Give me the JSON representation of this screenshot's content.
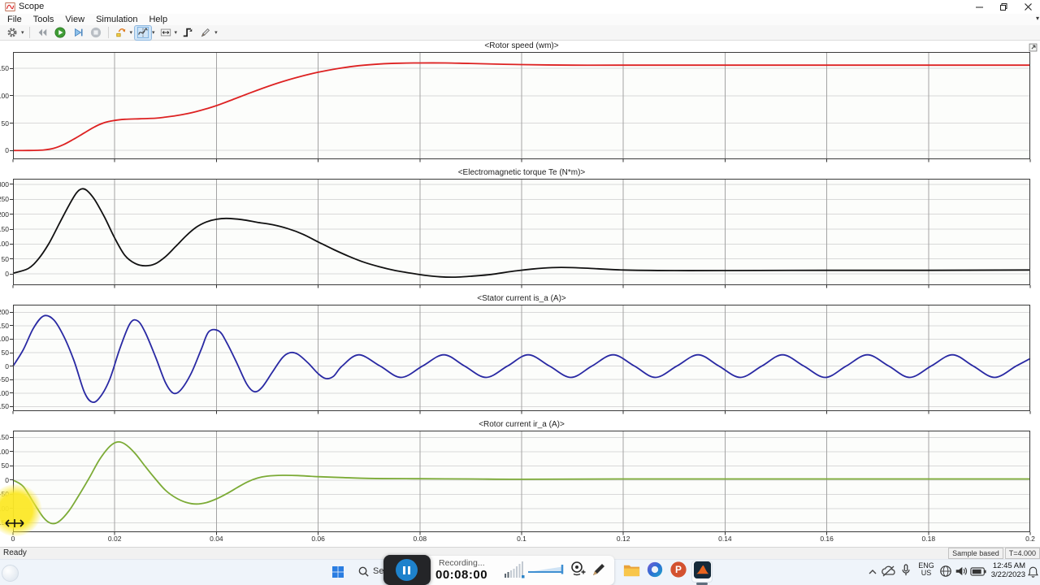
{
  "window": {
    "title": "Scope"
  },
  "menu": {
    "items": [
      "File",
      "Tools",
      "View",
      "Simulation",
      "Help"
    ]
  },
  "toolbar": {
    "buttons": [
      {
        "name": "settings-button",
        "icon": "gear-icon",
        "caret": true
      },
      {
        "name": "step-back-button",
        "icon": "step-back-icon",
        "sep_before": true
      },
      {
        "name": "run-button",
        "icon": "run-icon"
      },
      {
        "name": "step-forward-button",
        "icon": "step-forward-icon"
      },
      {
        "name": "stop-button",
        "icon": "stop-icon"
      },
      {
        "name": "highlight-block-button",
        "icon": "highlight-block-icon",
        "caret": true,
        "sep_before": true
      },
      {
        "name": "cursor-measurements-button",
        "icon": "cursor-measurements-icon",
        "caret": true,
        "active": true
      },
      {
        "name": "zoom-fit-button",
        "icon": "zoom-fit-icon",
        "caret": true
      },
      {
        "name": "trigger-button",
        "icon": "trigger-icon"
      },
      {
        "name": "style-brush-button",
        "icon": "brush-icon",
        "caret": true
      }
    ]
  },
  "x_axis": {
    "range": [
      0,
      0.2
    ],
    "ticks": [
      0,
      0.02,
      0.04,
      0.06,
      0.08,
      0.1,
      0.12,
      0.14,
      0.16,
      0.18,
      0.2
    ],
    "labels": [
      "0",
      "0.02",
      "0.04",
      "0.06",
      "0.08",
      "0.1",
      "0.12",
      "0.14",
      "0.16",
      "0.18",
      "0.2"
    ]
  },
  "chart_data": [
    {
      "type": "line",
      "title": "<Rotor speed (wm)>",
      "color": "#dd2222",
      "ylim": [
        -16,
        180
      ],
      "yticks": [
        0,
        50,
        100,
        150
      ],
      "points": [
        [
          0,
          0
        ],
        [
          0.003,
          0
        ],
        [
          0.006,
          1
        ],
        [
          0.008,
          4
        ],
        [
          0.01,
          11
        ],
        [
          0.012,
          21
        ],
        [
          0.014,
          32
        ],
        [
          0.016,
          43
        ],
        [
          0.018,
          51
        ],
        [
          0.02,
          55
        ],
        [
          0.022,
          57
        ],
        [
          0.025,
          58
        ],
        [
          0.028,
          59
        ],
        [
          0.03,
          61
        ],
        [
          0.033,
          65
        ],
        [
          0.036,
          71
        ],
        [
          0.04,
          82
        ],
        [
          0.044,
          96
        ],
        [
          0.048,
          110
        ],
        [
          0.052,
          123
        ],
        [
          0.056,
          134
        ],
        [
          0.06,
          143
        ],
        [
          0.064,
          150
        ],
        [
          0.068,
          155
        ],
        [
          0.072,
          158
        ],
        [
          0.076,
          159.5
        ],
        [
          0.08,
          160
        ],
        [
          0.085,
          160
        ],
        [
          0.09,
          159
        ],
        [
          0.1,
          157
        ],
        [
          0.11,
          156
        ],
        [
          0.12,
          156
        ],
        [
          0.14,
          156
        ],
        [
          0.16,
          156
        ],
        [
          0.18,
          156
        ],
        [
          0.2,
          156
        ]
      ]
    },
    {
      "type": "line",
      "title": "<Electromagnetic torque Te (N*m)>",
      "color": "#111111",
      "ylim": [
        -38,
        319
      ],
      "yticks": [
        0,
        50,
        100,
        150,
        200,
        250,
        300
      ],
      "points": [
        [
          0,
          2
        ],
        [
          0.003,
          18
        ],
        [
          0.005,
          50
        ],
        [
          0.007,
          100
        ],
        [
          0.009,
          165
        ],
        [
          0.011,
          230
        ],
        [
          0.0125,
          272
        ],
        [
          0.0135,
          285
        ],
        [
          0.0145,
          280
        ],
        [
          0.016,
          250
        ],
        [
          0.018,
          190
        ],
        [
          0.02,
          120
        ],
        [
          0.022,
          62
        ],
        [
          0.024,
          35
        ],
        [
          0.026,
          27
        ],
        [
          0.028,
          34
        ],
        [
          0.03,
          58
        ],
        [
          0.032,
          92
        ],
        [
          0.034,
          127
        ],
        [
          0.036,
          156
        ],
        [
          0.038,
          174
        ],
        [
          0.04,
          183
        ],
        [
          0.042,
          186
        ],
        [
          0.045,
          182
        ],
        [
          0.048,
          173
        ],
        [
          0.051,
          165
        ],
        [
          0.054,
          152
        ],
        [
          0.057,
          133
        ],
        [
          0.06,
          107
        ],
        [
          0.063,
          82
        ],
        [
          0.066,
          59
        ],
        [
          0.069,
          39
        ],
        [
          0.072,
          24
        ],
        [
          0.075,
          12
        ],
        [
          0.078,
          3
        ],
        [
          0.081,
          -5
        ],
        [
          0.084,
          -10
        ],
        [
          0.087,
          -11
        ],
        [
          0.09,
          -8
        ],
        [
          0.094,
          -2
        ],
        [
          0.098,
          8
        ],
        [
          0.102,
          16
        ],
        [
          0.106,
          21
        ],
        [
          0.11,
          21
        ],
        [
          0.115,
          17
        ],
        [
          0.12,
          13
        ],
        [
          0.13,
          11
        ],
        [
          0.14,
          11
        ],
        [
          0.16,
          12
        ],
        [
          0.18,
          12
        ],
        [
          0.2,
          13
        ]
      ]
    },
    {
      "type": "line",
      "title": "<Stator current is_a (A)>",
      "color": "#2929a3",
      "ylim": [
        -167,
        228
      ],
      "yticks": [
        -150,
        -100,
        -50,
        0,
        50,
        100,
        150,
        200
      ],
      "points": [
        [
          0,
          0
        ],
        [
          0.002,
          60
        ],
        [
          0.004,
          140
        ],
        [
          0.006,
          186
        ],
        [
          0.008,
          172
        ],
        [
          0.01,
          110
        ],
        [
          0.012,
          20
        ],
        [
          0.014,
          -95
        ],
        [
          0.0155,
          -133
        ],
        [
          0.017,
          -118
        ],
        [
          0.019,
          -50
        ],
        [
          0.021,
          65
        ],
        [
          0.023,
          158
        ],
        [
          0.0245,
          168
        ],
        [
          0.026,
          125
        ],
        [
          0.028,
          35
        ],
        [
          0.03,
          -62
        ],
        [
          0.0315,
          -100
        ],
        [
          0.033,
          -88
        ],
        [
          0.035,
          -28
        ],
        [
          0.037,
          62
        ],
        [
          0.0385,
          128
        ],
        [
          0.0405,
          130
        ],
        [
          0.042,
          88
        ],
        [
          0.044,
          12
        ],
        [
          0.046,
          -68
        ],
        [
          0.0475,
          -95
        ],
        [
          0.049,
          -78
        ],
        [
          0.051,
          -22
        ],
        [
          0.053,
          32
        ],
        [
          0.0545,
          50
        ],
        [
          0.056,
          44
        ],
        [
          0.058,
          12
        ],
        [
          0.06,
          -28
        ],
        [
          0.0615,
          -46
        ],
        [
          0.063,
          -38
        ],
        [
          0.0647,
          0
        ],
        [
          0.068,
          42
        ],
        [
          0.0722,
          0
        ],
        [
          0.0763,
          -42
        ],
        [
          0.0805,
          0
        ],
        [
          0.0847,
          42
        ],
        [
          0.0888,
          0
        ],
        [
          0.093,
          -42
        ],
        [
          0.0972,
          0
        ],
        [
          0.1013,
          42
        ],
        [
          0.1055,
          0
        ],
        [
          0.1097,
          -42
        ],
        [
          0.1138,
          0
        ],
        [
          0.118,
          42
        ],
        [
          0.1222,
          0
        ],
        [
          0.1263,
          -42
        ],
        [
          0.1305,
          0
        ],
        [
          0.1347,
          42
        ],
        [
          0.1388,
          0
        ],
        [
          0.143,
          -42
        ],
        [
          0.1472,
          0
        ],
        [
          0.1513,
          42
        ],
        [
          0.1555,
          0
        ],
        [
          0.1597,
          -42
        ],
        [
          0.1638,
          0
        ],
        [
          0.168,
          42
        ],
        [
          0.1722,
          0
        ],
        [
          0.1763,
          -42
        ],
        [
          0.1805,
          0
        ],
        [
          0.1847,
          42
        ],
        [
          0.1888,
          0
        ],
        [
          0.193,
          -42
        ],
        [
          0.1972,
          0
        ],
        [
          0.2,
          28
        ]
      ]
    },
    {
      "type": "line",
      "title": "<Rotor current ir_a (A)>",
      "color": "#7cab36",
      "ylim": [
        -183,
        174
      ],
      "yticks": [
        -150,
        -100,
        -50,
        0,
        50,
        100,
        150
      ],
      "points": [
        [
          0,
          0
        ],
        [
          0.002,
          -22
        ],
        [
          0.004,
          -78
        ],
        [
          0.006,
          -132
        ],
        [
          0.0075,
          -152
        ],
        [
          0.009,
          -146
        ],
        [
          0.011,
          -108
        ],
        [
          0.013,
          -52
        ],
        [
          0.015,
          8
        ],
        [
          0.017,
          72
        ],
        [
          0.019,
          118
        ],
        [
          0.0205,
          134
        ],
        [
          0.022,
          127
        ],
        [
          0.024,
          94
        ],
        [
          0.026,
          48
        ],
        [
          0.028,
          4
        ],
        [
          0.03,
          -36
        ],
        [
          0.032,
          -62
        ],
        [
          0.034,
          -78
        ],
        [
          0.036,
          -84
        ],
        [
          0.038,
          -79
        ],
        [
          0.04,
          -66
        ],
        [
          0.042,
          -48
        ],
        [
          0.044,
          -27
        ],
        [
          0.046,
          -7
        ],
        [
          0.048,
          7
        ],
        [
          0.05,
          14
        ],
        [
          0.053,
          17
        ],
        [
          0.056,
          16
        ],
        [
          0.06,
          12
        ],
        [
          0.065,
          9
        ],
        [
          0.07,
          6
        ],
        [
          0.08,
          5
        ],
        [
          0.09,
          4
        ],
        [
          0.1,
          3
        ],
        [
          0.12,
          4
        ],
        [
          0.14,
          4
        ],
        [
          0.16,
          4
        ],
        [
          0.18,
          4
        ],
        [
          0.2,
          4
        ]
      ]
    }
  ],
  "statusbar": {
    "ready": "Ready",
    "sample_mode": "Sample based",
    "sim_time": "T=4.000"
  },
  "taskbar": {
    "search_text": "Se",
    "recording": {
      "label": "Recording...",
      "time": "00:08:00"
    },
    "apps": [
      "file-explorer",
      "office",
      "powerpoint",
      "matlab"
    ],
    "tray": {
      "language_line1": "ENG",
      "language_line2": "US",
      "clock_time": "12:45 AM",
      "clock_date": "3/22/2023"
    }
  }
}
